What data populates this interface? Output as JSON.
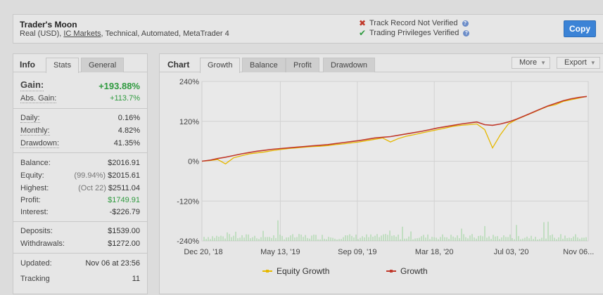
{
  "header": {
    "title": "Trader's Moon",
    "subtitle_prefix": "Real (USD), ",
    "broker": "IC Markets",
    "subtitle_suffix": ", Technical, Automated, MetaTrader 4",
    "track_record": "Track Record Not Verified",
    "trading_privileges": "Trading Privileges Verified",
    "copy_label": "Copy"
  },
  "info": {
    "label": "Info",
    "tabs": [
      "Stats",
      "General"
    ],
    "gain_label": "Gain:",
    "gain_value": "+193.88%",
    "abs_gain_label": "Abs. Gain:",
    "abs_gain_value": "+113.7%",
    "daily_label": "Daily:",
    "daily_value": "0.16%",
    "monthly_label": "Monthly:",
    "monthly_value": "4.82%",
    "drawdown_label": "Drawdown:",
    "drawdown_value": "41.35%",
    "balance_label": "Balance:",
    "balance_value": "$2016.91",
    "equity_label": "Equity:",
    "equity_pre": "(99.94%)",
    "equity_value": "$2015.61",
    "highest_label": "Highest:",
    "highest_pre": "(Oct 22)",
    "highest_value": "$2511.04",
    "profit_label": "Profit:",
    "profit_value": "$1749.91",
    "interest_label": "Interest:",
    "interest_value": "-$226.79",
    "deposits_label": "Deposits:",
    "deposits_value": "$1539.00",
    "withdrawals_label": "Withdrawals:",
    "withdrawals_value": "$1272.00",
    "updated_label": "Updated:",
    "updated_value": "Nov 06 at 23:56",
    "tracking_label": "Tracking",
    "tracking_value": "11"
  },
  "chart_panel": {
    "label": "Chart",
    "tabs": [
      "Growth",
      "Balance",
      "Profit",
      "Drawdown"
    ],
    "more_label": "More",
    "export_label": "Export",
    "colors": {
      "growth": "#c0392b",
      "equity": "#e6b800",
      "volume": "#9bd29b"
    }
  },
  "chart_data": {
    "type": "line",
    "y_ticks": [
      "240%",
      "120%",
      "0%",
      "-120%",
      "-240%"
    ],
    "ylim": [
      -240,
      240
    ],
    "x_ticks": [
      "Dec 20, '18",
      "May 13, '19",
      "Sep 09, '19",
      "Mar 18, '20",
      "Jul 03, '20",
      "Nov 06..."
    ],
    "grid": true,
    "legend_position": "bottom",
    "series": [
      {
        "name": "Equity Growth",
        "values": [
          0,
          2,
          5,
          -8,
          10,
          16,
          22,
          25,
          28,
          32,
          35,
          38,
          40,
          42,
          44,
          45,
          47,
          50,
          52,
          55,
          58,
          62,
          66,
          70,
          58,
          68,
          75,
          80,
          85,
          90,
          95,
          100,
          105,
          108,
          110,
          112,
          95,
          40,
          80,
          112,
          125,
          135,
          145,
          155,
          165,
          170,
          180,
          185,
          190,
          195
        ]
      },
      {
        "name": "Growth",
        "values": [
          0,
          3,
          8,
          12,
          17,
          22,
          26,
          30,
          33,
          36,
          38,
          40,
          42,
          44,
          46,
          48,
          50,
          53,
          56,
          59,
          62,
          66,
          70,
          72,
          74,
          78,
          82,
          86,
          90,
          95,
          100,
          104,
          108,
          112,
          115,
          118,
          110,
          108,
          112,
          118,
          126,
          136,
          146,
          156,
          166,
          174,
          182,
          188,
          192,
          195
        ]
      }
    ]
  }
}
